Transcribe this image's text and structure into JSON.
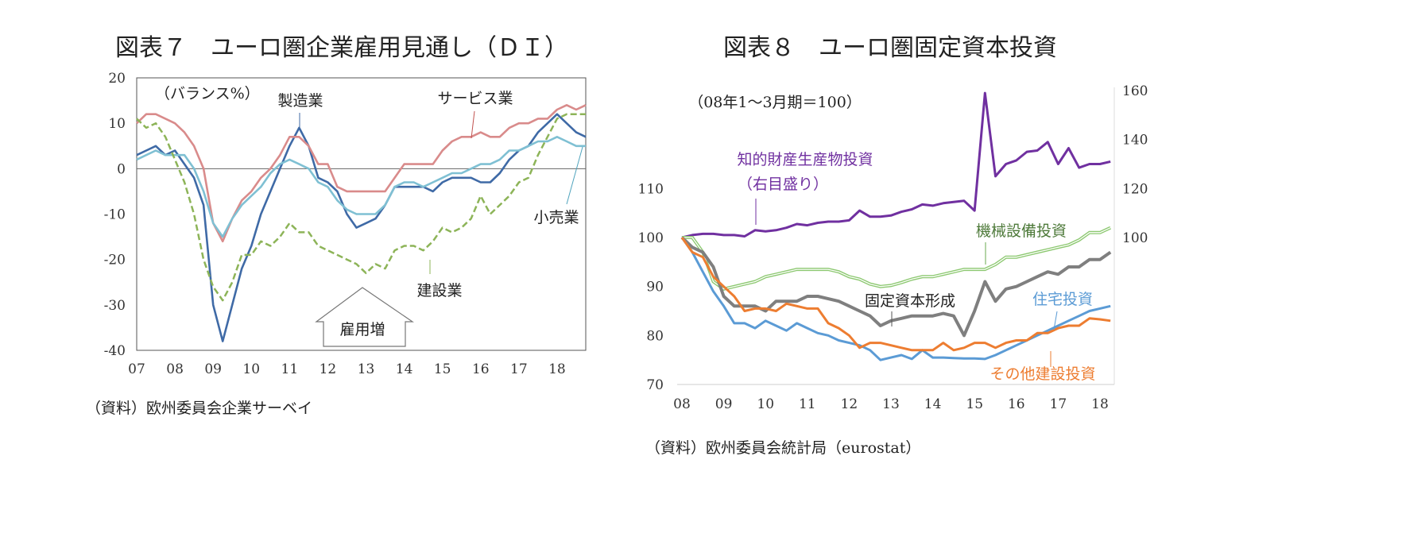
{
  "chart_data": [
    {
      "type": "line",
      "title": "図表７　ユーロ圏企業雇用見通し（ＤＩ）",
      "unit_label": "（バランス%）",
      "source": "（資料）欧州委員会企業サーベイ",
      "x_tick_labels": [
        "07",
        "08",
        "09",
        "10",
        "11",
        "12",
        "13",
        "14",
        "15",
        "16",
        "17",
        "18"
      ],
      "x_ticks": [
        2007,
        2008,
        2009,
        2010,
        2011,
        2012,
        2013,
        2014,
        2015,
        2016,
        2017,
        2018
      ],
      "xlim": [
        2007,
        2018.75
      ],
      "ylim": [
        -40,
        20
      ],
      "y_ticks": [
        20,
        10,
        0,
        -10,
        -20,
        -30,
        -40
      ],
      "y_tick_labels": [
        "20",
        "10",
        "0",
        "-10",
        "-20",
        "-30",
        "-40"
      ],
      "x_start": 2007,
      "x_step": 0.25,
      "series": [
        {
          "name": "製造業",
          "color": "#3f6aa6",
          "dash": false,
          "values": [
            3,
            4,
            5,
            3,
            4,
            1,
            -2,
            -8,
            -30,
            -38,
            -30,
            -22,
            -17,
            -10,
            -5,
            0,
            5,
            9,
            5,
            -2,
            -3,
            -5,
            -10,
            -13,
            -12,
            -11,
            -8,
            -4,
            -4,
            -4,
            -4,
            -5,
            -3,
            -2,
            -2,
            -2,
            -3,
            -3,
            -1,
            2,
            4,
            5,
            8,
            10,
            12,
            10,
            8,
            7
          ]
        },
        {
          "name": "サービス業",
          "color": "#d98b8b",
          "dash": false,
          "values": [
            10,
            12,
            12,
            11,
            10,
            8,
            5,
            0,
            -12,
            -16,
            -11,
            -7,
            -5,
            -2,
            0,
            3,
            7,
            7,
            5,
            1,
            1,
            -4,
            -5,
            -5,
            -5,
            -5,
            -5,
            -2,
            1,
            1,
            1,
            1,
            4,
            6,
            7,
            7,
            8,
            7,
            7,
            9,
            10,
            10,
            11,
            11,
            13,
            14,
            13,
            14
          ]
        },
        {
          "name": "小売業",
          "color": "#7fc0d3",
          "dash": false,
          "values": [
            2,
            3,
            4,
            3,
            3,
            3,
            0,
            -5,
            -12,
            -15,
            -11,
            -8,
            -6,
            -4,
            -1,
            1,
            2,
            1,
            0,
            -3,
            -4,
            -7,
            -9,
            -10,
            -10,
            -10,
            -8,
            -4,
            -3,
            -3,
            -4,
            -3,
            -2,
            -1,
            -1,
            0,
            1,
            1,
            2,
            4,
            4,
            5,
            6,
            6,
            7,
            6,
            5,
            5
          ]
        },
        {
          "name": "建設業",
          "color": "#8db458",
          "dash": true,
          "values": [
            11,
            9,
            10,
            7,
            2,
            -3,
            -10,
            -20,
            -26,
            -29,
            -25,
            -19,
            -19,
            -16,
            -17,
            -15,
            -12,
            -14,
            -14,
            -17,
            -18,
            -19,
            -20,
            -21,
            -23,
            -21,
            -22,
            -18,
            -17,
            -17,
            -18,
            -16,
            -13,
            -14,
            -13,
            -11,
            -6,
            -10,
            -8,
            -6,
            -3,
            -2,
            3,
            7,
            11,
            12,
            12,
            12
          ]
        }
      ],
      "annotations": [
        "雇用増"
      ]
    },
    {
      "type": "line",
      "title": "図表８　ユーロ圏固定資本投資",
      "unit_label": "（08年1～3月期＝100）",
      "source": "（資料）欧州委員会統計局（eurostat）",
      "x_tick_labels": [
        "08",
        "09",
        "10",
        "11",
        "12",
        "13",
        "14",
        "15",
        "16",
        "17",
        "18"
      ],
      "x_ticks": [
        2008,
        2009,
        2010,
        2011,
        2012,
        2013,
        2014,
        2015,
        2016,
        2017,
        2018
      ],
      "xlim": [
        2008,
        2018.25
      ],
      "ylim_left": [
        70,
        130
      ],
      "ylim_right": [
        40,
        160
      ],
      "y_ticks_left": [
        "110",
        "100",
        "90",
        "80",
        "70"
      ],
      "y_ticks_right": [
        "160",
        "140",
        "120",
        "100"
      ],
      "x_start": 2008,
      "x_step": 0.25,
      "series": [
        {
          "name": "知的財産生産物投資",
          "sub": "（右目盛り）",
          "axis": "right",
          "color": "#7030a0",
          "values": [
            100,
            101,
            101.5,
            101.5,
            101,
            101,
            100.5,
            103,
            102.5,
            103,
            104,
            105.5,
            105,
            106,
            106.5,
            106.5,
            107,
            111,
            108.5,
            108.5,
            109,
            110.5,
            111.5,
            113.5,
            113,
            114,
            114.5,
            115,
            111,
            159,
            125,
            130,
            131.5,
            135,
            135.5,
            139,
            130,
            136.5,
            128.5,
            130,
            130,
            131
          ]
        },
        {
          "name": "機械設備投資",
          "axis": "left",
          "color": "#8cc870",
          "label_color": "#4e7a3a",
          "values": [
            100,
            100,
            97,
            91,
            89.5,
            90,
            90.5,
            91,
            92,
            92.5,
            93,
            93.5,
            93.5,
            93.5,
            93.5,
            93,
            92,
            91.5,
            90.5,
            90,
            90.2,
            90.8,
            91.5,
            92,
            92,
            92.5,
            93,
            93.5,
            93.5,
            93.5,
            94.5,
            96,
            96,
            96.5,
            97,
            97.5,
            98,
            98.5,
            99.5,
            101,
            101,
            102
          ]
        },
        {
          "name": "固定資本形成",
          "axis": "left",
          "color": "#7f7f7f",
          "label_color": "#222222",
          "values": [
            100,
            98,
            97,
            94,
            88,
            86,
            86,
            86,
            85,
            87,
            87,
            87,
            88,
            88,
            87.5,
            87,
            86,
            85,
            84,
            82,
            83,
            83.5,
            84,
            84,
            84,
            84.5,
            84,
            80,
            85,
            91,
            87,
            89.5,
            90,
            91,
            92,
            93,
            92.5,
            94,
            94,
            95.5,
            95.5,
            97
          ]
        },
        {
          "name": "住宅投資",
          "axis": "left",
          "color": "#5b9bd5",
          "values": [
            100,
            97,
            93,
            89,
            86,
            82.5,
            82.5,
            81.5,
            83,
            82,
            81,
            82.5,
            81.5,
            80.5,
            80,
            79,
            78.5,
            78,
            77,
            75,
            75.5,
            76,
            75.2,
            77,
            75.5,
            75.5,
            75.4,
            75.3,
            75.3,
            75.2,
            76,
            77,
            78,
            79,
            80,
            81,
            82,
            83,
            84,
            85,
            85.5,
            86
          ]
        },
        {
          "name": "その他建設投資",
          "axis": "left",
          "color": "#ed7d31",
          "values": [
            100,
            97,
            96,
            92,
            90,
            88,
            85,
            85.5,
            85.5,
            85,
            86.5,
            86,
            85.5,
            85.5,
            82.5,
            81.5,
            80,
            77.5,
            78.5,
            78.5,
            78,
            77.5,
            77,
            77,
            77,
            78.5,
            77,
            77.5,
            78.5,
            78.5,
            77.5,
            78.5,
            79,
            79,
            80.5,
            80.5,
            81.5,
            82,
            82,
            83.5,
            83.3,
            83
          ]
        }
      ]
    }
  ]
}
